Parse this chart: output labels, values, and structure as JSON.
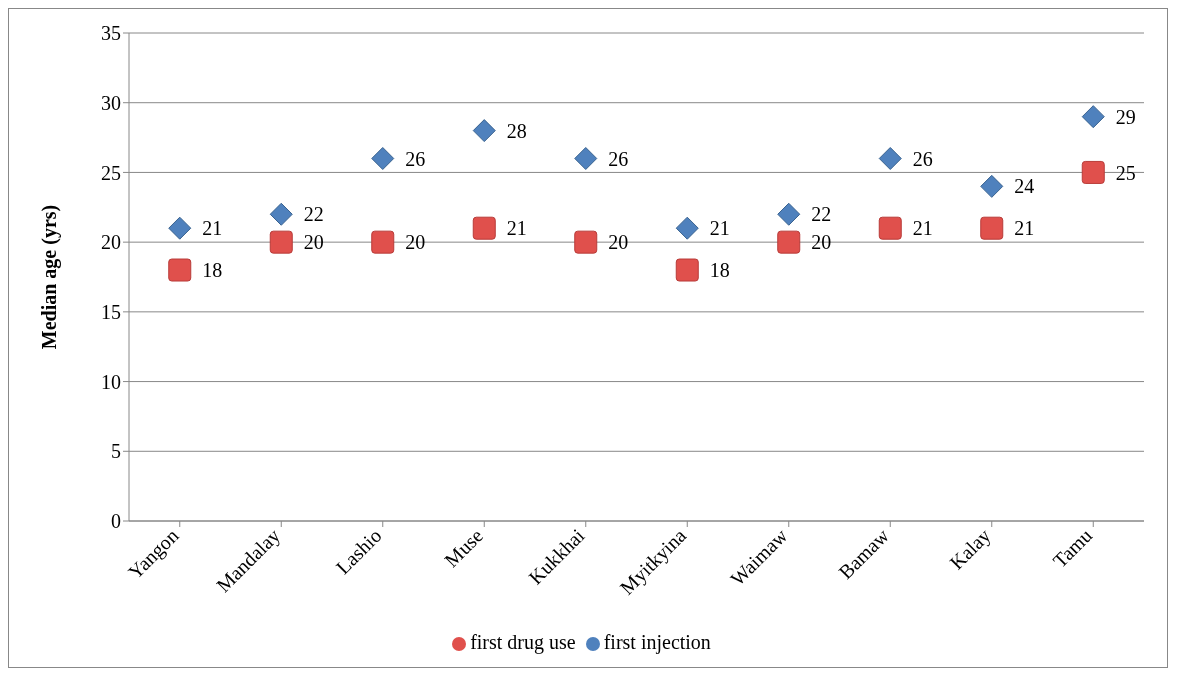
{
  "chart_data": {
    "type": "scatter",
    "ylabel": "Median age (yrs)",
    "categories": [
      "Yangon",
      "Mandalay",
      "Lashio",
      "Muse",
      "Kukkhai",
      "Myitkyina",
      "Waimaw",
      "Bamaw",
      "Kalay",
      "Tamu"
    ],
    "series": [
      {
        "name": "first drug use",
        "color": "#e0504c",
        "marker": "square",
        "values": [
          18,
          20,
          20,
          21,
          20,
          18,
          20,
          21,
          21,
          25
        ]
      },
      {
        "name": "first injection",
        "color": "#4f81bd",
        "marker": "diamond",
        "values": [
          21,
          22,
          26,
          28,
          26,
          21,
          22,
          26,
          24,
          29
        ]
      }
    ],
    "ylim": [
      0,
      35
    ],
    "yticks": [
      0,
      5,
      10,
      15,
      20,
      25,
      30,
      35
    ],
    "grid": "y",
    "legend": "bottom",
    "data_labels": true
  }
}
